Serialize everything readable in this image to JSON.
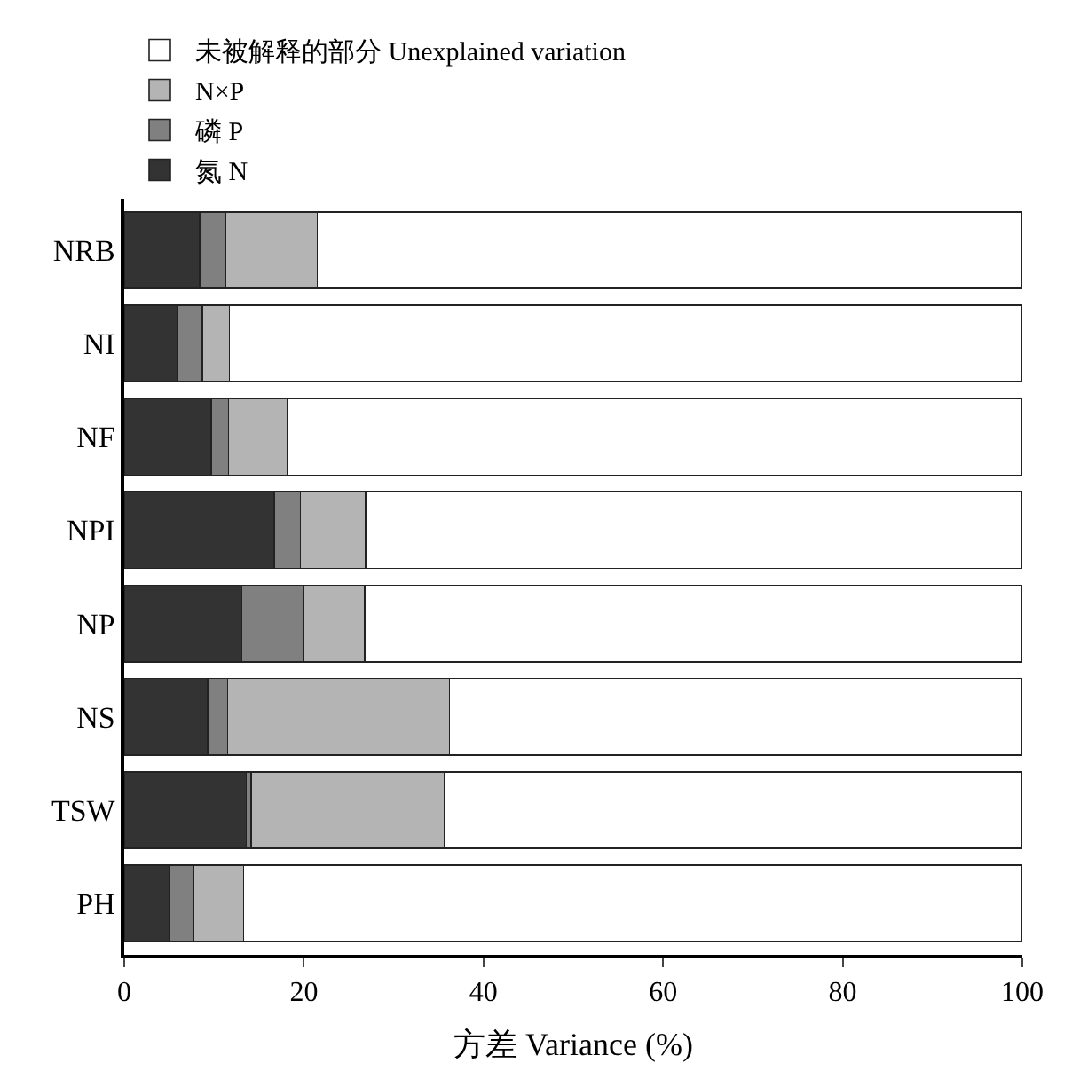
{
  "chart_data": {
    "type": "bar",
    "orientation": "horizontal",
    "stacked": true,
    "xlabel": "方差 Variance (%)",
    "categories": [
      "NRB",
      "NI",
      "NF",
      "NPI",
      "NP",
      "NS",
      "TSW",
      "PH"
    ],
    "series": [
      {
        "name": "氮 N",
        "color": "#333333",
        "values": [
          8.4,
          5.9,
          9.7,
          16.7,
          13.1,
          9.3,
          13.6,
          5.1
        ]
      },
      {
        "name": "磷 P",
        "color": "#808080",
        "values": [
          2.9,
          2.8,
          1.9,
          2.9,
          6.9,
          2.2,
          0.5,
          2.6
        ]
      },
      {
        "name": "N×P",
        "color": "#b4b4b4",
        "values": [
          10.2,
          3.0,
          6.6,
          7.3,
          6.8,
          24.7,
          21.6,
          5.6
        ]
      },
      {
        "name": "未被解释的部分 Unexplained variation",
        "color": "#ffffff",
        "values": [
          78.5,
          88.3,
          81.8,
          73.1,
          73.2,
          63.8,
          64.3,
          86.7
        ]
      }
    ],
    "xlim": [
      0,
      100
    ],
    "xticks": [
      0,
      20,
      40,
      60,
      80,
      100
    ],
    "legend": "top"
  }
}
